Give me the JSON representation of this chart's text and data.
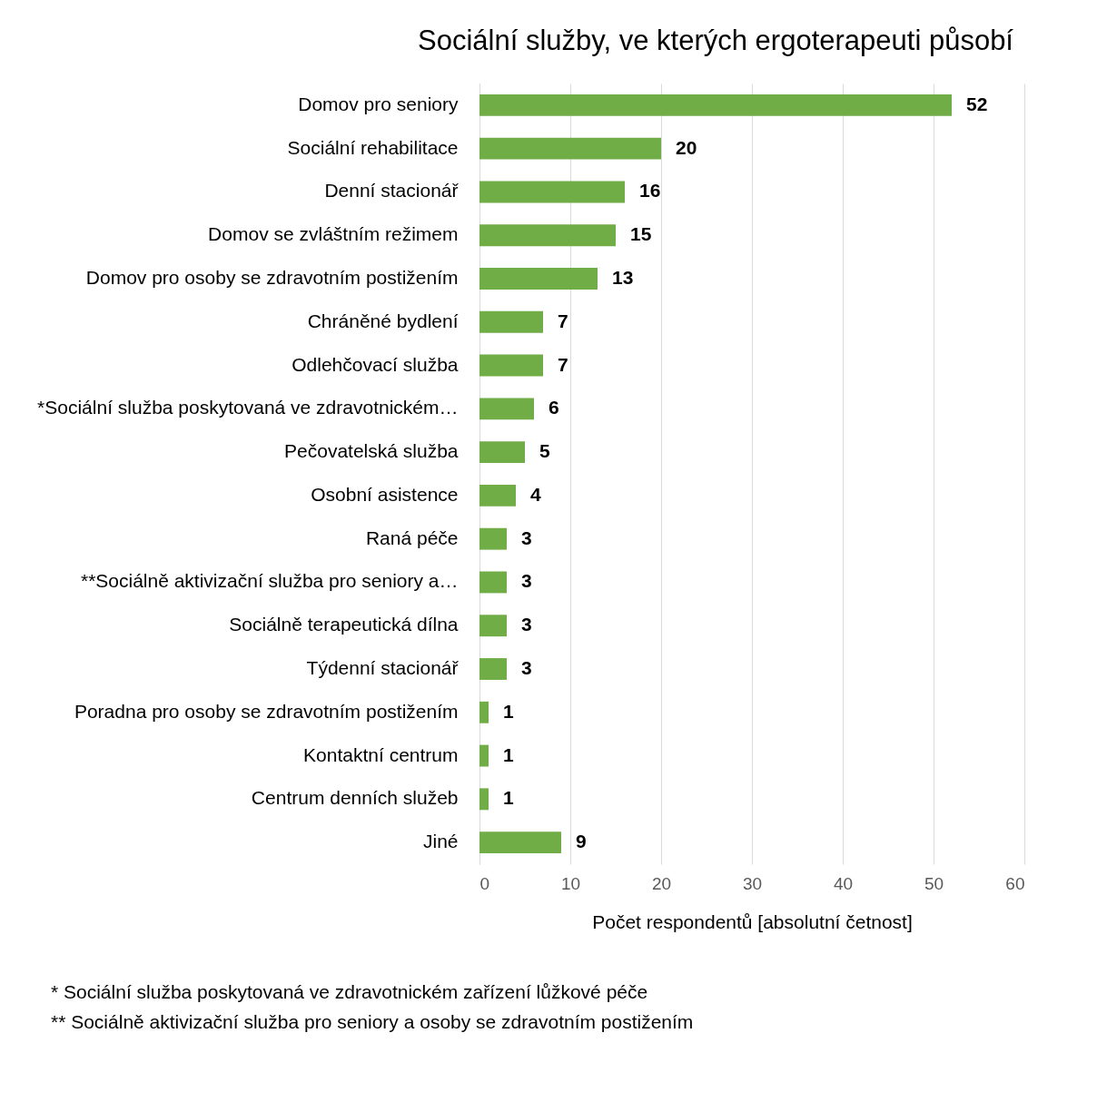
{
  "chart_data": {
    "type": "bar",
    "orientation": "horizontal",
    "title": "Sociální služby, ve kterých ergoterapeuti působí",
    "xlabel": "Počet respondentů [absolutní četnost]",
    "categories": [
      "Domov pro seniory",
      "Sociální rehabilitace",
      "Denní stacionář",
      "Domov se zvláštním režimem",
      "Domov pro osoby se zdravotním postižením",
      "Chráněné bydlení",
      "Odlehčovací služba",
      "*Sociální služba poskytovaná ve zdravotnickém…",
      "Pečovatelská služba",
      "Osobní asistence",
      "Raná péče",
      "**Sociálně aktivizační služba pro seniory a…",
      "Sociálně terapeutická dílna",
      "Týdenní stacionář",
      "Poradna pro osoby se zdravotním postižením",
      "Kontaktní centrum",
      "Centrum denních služeb",
      "Jiné"
    ],
    "values": [
      52,
      20,
      16,
      15,
      13,
      7,
      7,
      6,
      5,
      4,
      3,
      3,
      3,
      3,
      1,
      1,
      1,
      9
    ],
    "color": "#70ad47",
    "xlim": [
      0,
      60
    ],
    "xticks": [
      0,
      10,
      20,
      30,
      40,
      50,
      60
    ],
    "grid": "x",
    "data_labels": true,
    "annotations": [
      "* Sociální služba poskytovaná ve zdravotnickém zařízení lůžkové péče",
      "** Sociálně aktivizační služba pro seniory a osoby se zdravotním postižením"
    ]
  }
}
